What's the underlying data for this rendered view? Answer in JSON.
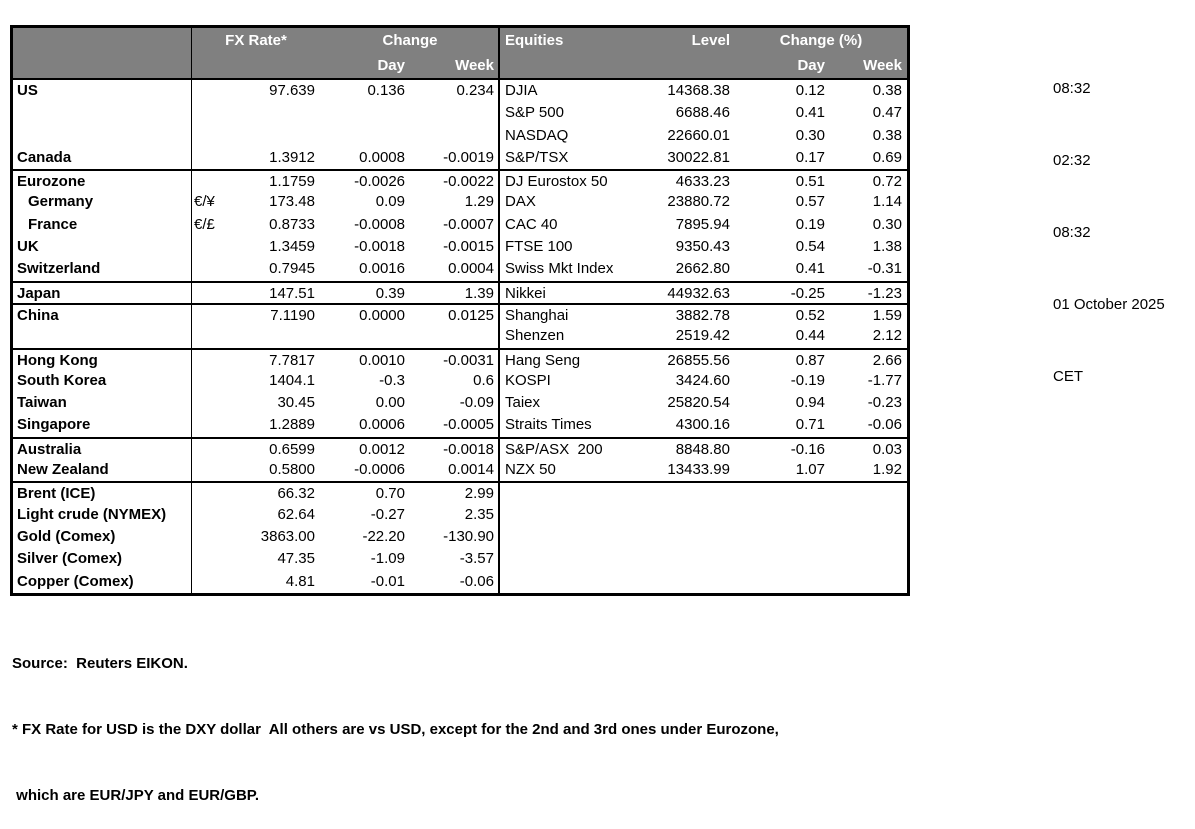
{
  "colors": {
    "header_bg": "#808080",
    "header_text": "#ffffff",
    "border": "#000000"
  },
  "header": {
    "fx_rate": "FX Rate*",
    "change": "Change",
    "day_fx": "Day",
    "week_fx": "Week",
    "equities": "Equities",
    "level": "Level",
    "change_pct": "Change (%)",
    "day_eq": "Day",
    "week_eq": "Week"
  },
  "rows": [
    {
      "label": "US",
      "cur": "",
      "fx": "97.639",
      "fxd": "0.136",
      "fxw": "0.234",
      "eq": "DJIA",
      "lvl": "14368.38",
      "eqd": "0.12",
      "eqw": "0.38"
    },
    {
      "label": "",
      "cur": "",
      "fx": "",
      "fxd": "",
      "fxw": "",
      "eq": "S&P 500",
      "lvl": "6688.46",
      "eqd": "0.41",
      "eqw": "0.47"
    },
    {
      "label": "",
      "cur": "",
      "fx": "",
      "fxd": "",
      "fxw": "",
      "eq": "NASDAQ",
      "lvl": "22660.01",
      "eqd": "0.30",
      "eqw": "0.38"
    },
    {
      "label": "Canada",
      "cur": "",
      "fx": "1.3912",
      "fxd": "0.0008",
      "fxw": "-0.0019",
      "eq": "S&P/TSX",
      "lvl": "30022.81",
      "eqd": "0.17",
      "eqw": "0.69"
    },
    {
      "label": "Eurozone",
      "cur": "",
      "fx": "1.1759",
      "fxd": "-0.0026",
      "fxw": "-0.0022",
      "eq": "DJ Eurostox 50",
      "lvl": "4633.23",
      "eqd": "0.51",
      "eqw": "0.72"
    },
    {
      "label": "Germany",
      "cur": "€/¥",
      "fx": "173.48",
      "fxd": "0.09",
      "fxw": "1.29",
      "eq": "DAX",
      "lvl": "23880.72",
      "eqd": "0.57",
      "eqw": "1.14"
    },
    {
      "label": "France",
      "cur": "€/£",
      "fx": "0.8733",
      "fxd": "-0.0008",
      "fxw": "-0.0007",
      "eq": "CAC 40",
      "lvl": "7895.94",
      "eqd": "0.19",
      "eqw": "0.30"
    },
    {
      "label": "UK",
      "cur": "",
      "fx": "1.3459",
      "fxd": "-0.0018",
      "fxw": "-0.0015",
      "eq": "FTSE 100",
      "lvl": "9350.43",
      "eqd": "0.54",
      "eqw": "1.38"
    },
    {
      "label": "Switzerland",
      "cur": "",
      "fx": "0.7945",
      "fxd": "0.0016",
      "fxw": "0.0004",
      "eq": "Swiss Mkt Index",
      "lvl": "2662.80",
      "eqd": "0.41",
      "eqw": "-0.31"
    },
    {
      "label": "Japan",
      "cur": "",
      "fx": "147.51",
      "fxd": "0.39",
      "fxw": "1.39",
      "eq": "Nikkei",
      "lvl": "44932.63",
      "eqd": "-0.25",
      "eqw": "-1.23"
    },
    {
      "label": "China",
      "cur": "",
      "fx": "7.1190",
      "fxd": "0.0000",
      "fxw": "0.0125",
      "eq": "Shanghai",
      "lvl": "3882.78",
      "eqd": "0.52",
      "eqw": "1.59"
    },
    {
      "label": "",
      "cur": "",
      "fx": "",
      "fxd": "",
      "fxw": "",
      "eq": "Shenzen",
      "lvl": "2519.42",
      "eqd": "0.44",
      "eqw": "2.12"
    },
    {
      "label": "Hong Kong",
      "cur": "",
      "fx": "7.7817",
      "fxd": "0.0010",
      "fxw": "-0.0031",
      "eq": "Hang Seng",
      "lvl": "26855.56",
      "eqd": "0.87",
      "eqw": "2.66"
    },
    {
      "label": "South Korea",
      "cur": "",
      "fx": "1404.1",
      "fxd": "-0.3",
      "fxw": "0.6",
      "eq": "KOSPI",
      "lvl": "3424.60",
      "eqd": "-0.19",
      "eqw": "-1.77"
    },
    {
      "label": "Taiwan",
      "cur": "",
      "fx": "30.45",
      "fxd": "0.00",
      "fxw": "-0.09",
      "eq": "Taiex",
      "lvl": "25820.54",
      "eqd": "0.94",
      "eqw": "-0.23"
    },
    {
      "label": "Singapore",
      "cur": "",
      "fx": "1.2889",
      "fxd": "0.0006",
      "fxw": "-0.0005",
      "eq": "Straits Times",
      "lvl": "4300.16",
      "eqd": "0.71",
      "eqw": "-0.06"
    },
    {
      "label": "Australia",
      "cur": "",
      "fx": "0.6599",
      "fxd": "0.0012",
      "fxw": "-0.0018",
      "eq": "S&P/ASX  200",
      "lvl": "8848.80",
      "eqd": "-0.16",
      "eqw": "0.03"
    },
    {
      "label": "New Zealand",
      "cur": "",
      "fx": "0.5800",
      "fxd": "-0.0006",
      "fxw": "0.0014",
      "eq": "NZX 50",
      "lvl": "13433.99",
      "eqd": "1.07",
      "eqw": "1.92"
    },
    {
      "label": "Brent (ICE)",
      "cur": "",
      "fx": "66.32",
      "fxd": "0.70",
      "fxw": "2.99",
      "eq": "",
      "lvl": "",
      "eqd": "",
      "eqw": ""
    },
    {
      "label": "Light crude (NYMEX)",
      "cur": "",
      "fx": "62.64",
      "fxd": "-0.27",
      "fxw": "2.35",
      "eq": "",
      "lvl": "",
      "eqd": "",
      "eqw": ""
    },
    {
      "label": "Gold (Comex)",
      "cur": "",
      "fx": "3863.00",
      "fxd": "-22.20",
      "fxw": "-130.90",
      "eq": "",
      "lvl": "",
      "eqd": "",
      "eqw": ""
    },
    {
      "label": "Silver (Comex)",
      "cur": "",
      "fx": "47.35",
      "fxd": "-1.09",
      "fxw": "-3.57",
      "eq": "",
      "lvl": "",
      "eqd": "",
      "eqw": ""
    },
    {
      "label": "Copper (Comex)",
      "cur": "",
      "fx": "4.81",
      "fxd": "-0.01",
      "fxw": "-0.06",
      "eq": "",
      "lvl": "",
      "eqd": "",
      "eqw": ""
    }
  ],
  "stamps": {
    "time1": "08:32",
    "time2": "02:32",
    "time3": "08:32",
    "date": "01 October 2025",
    "tz": "CET"
  },
  "footer": {
    "source": "Source:  Reuters EIKON.",
    "note1": "* FX Rate for USD is the DXY dollar  All others are vs USD, except for the 2nd and 3rd ones under Eurozone,",
    "note2": " which are EUR/JPY and EUR/GBP."
  }
}
